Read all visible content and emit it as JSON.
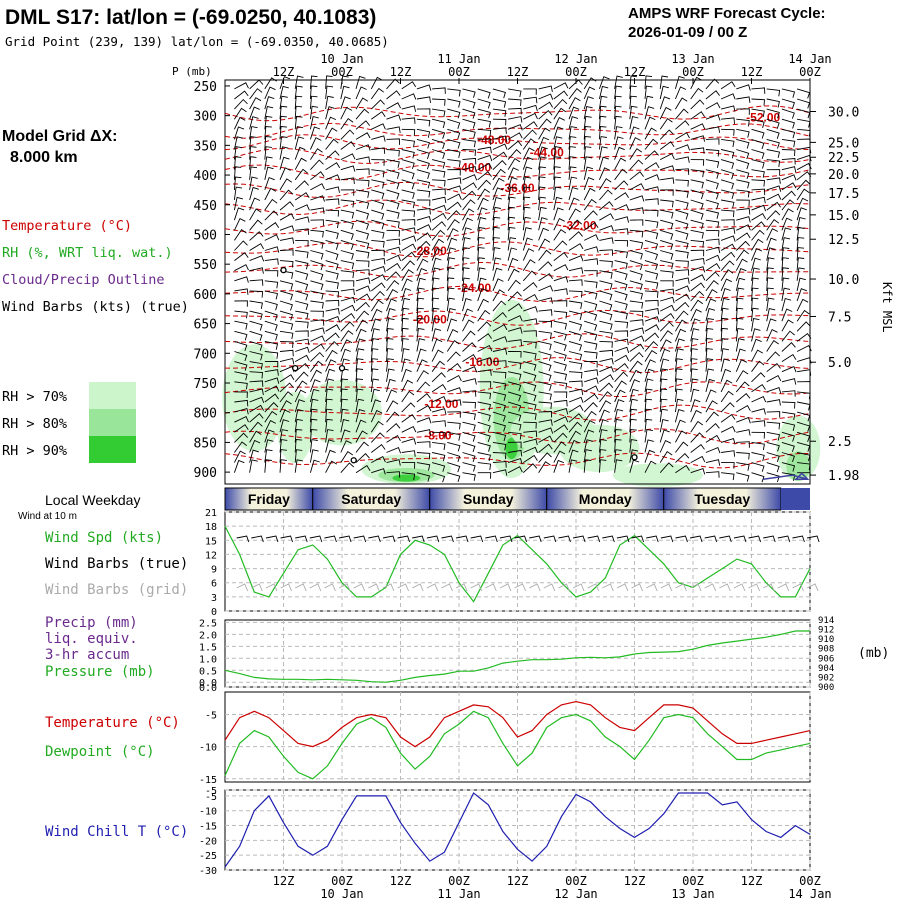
{
  "header": {
    "title": "DML S17:  lat/lon = (-69.0250, 40.1083)",
    "subtitle": "Grid Point (239, 139) lat/lon = (-69.0350, 40.0685)",
    "cycle_label": "AMPS WRF Forecast Cycle:",
    "cycle_value": "2026-01-09 / 00  Z",
    "grid_label": "Model Grid ΔX:",
    "grid_value": "8.000 km",
    "pressure_unit": "P (mb)",
    "height_unit": "Kft MSL"
  },
  "legend": {
    "temperature": "Temperature (°C)",
    "rh": "RH (%, WRT liq. wat.)",
    "cloud": "Cloud/Precip Outline",
    "wind_barbs": "Wind Barbs (kts) (true)",
    "rh70": "RH > 70%",
    "rh80": "RH > 80%",
    "rh90": "RH > 90%"
  },
  "colors": {
    "temperature": "#cc0000",
    "rh70": "#ccf5cc",
    "rh80": "#99e599",
    "rh90": "#33cc33",
    "wind_speed": "#22bb22",
    "dewpoint": "#22bb22",
    "wind_chill": "#1f1fb0",
    "pressure": "#22bb22",
    "precip": "#6a2a8c",
    "grid_barbs": "#aaaaaa",
    "weekday_band": "#3d4aa8"
  },
  "axis": {
    "time_labels_top": [
      "12Z",
      "00Z",
      "12Z",
      "00Z",
      "12Z",
      "00Z",
      "12Z",
      "00Z",
      "12Z",
      "00Z"
    ],
    "date_labels": [
      "10 Jan",
      "11 Jan",
      "12 Jan",
      "13 Jan",
      "14 Jan"
    ],
    "time_labels_bottom": [
      "12Z",
      "00Z",
      "12Z",
      "00Z",
      "12Z",
      "00Z",
      "12Z",
      "00Z",
      "12Z",
      "00Z"
    ],
    "pressure_ticks": [
      250,
      300,
      350,
      400,
      450,
      500,
      550,
      600,
      650,
      700,
      750,
      800,
      850,
      900
    ],
    "height_ticks": [
      "30.0",
      "25.0",
      "22.5",
      "20.0",
      "17.5",
      "15.0",
      "12.5",
      "10.0",
      "7.5",
      "5.0",
      "2.5",
      "1.98"
    ]
  },
  "weekday": {
    "label": "Local Weekday",
    "days": [
      "Friday",
      "Saturday",
      "Sunday",
      "Monday",
      "Tuesday"
    ]
  },
  "panels": {
    "wind": {
      "note": "Wind at 10 m",
      "speed_label": "Wind Spd (kts)",
      "barbs_true_label": "Wind Barbs (true)",
      "barbs_grid_label": "Wind Barbs (grid)",
      "ticks": [
        "21",
        "18",
        "15",
        "12",
        "9",
        "6",
        "3",
        "0"
      ]
    },
    "precip": {
      "precip_label": "Precip (mm)",
      "liq_label": "liq. equiv.",
      "accum_label": "3-hr accum",
      "pressure_label": "Pressure (mb)",
      "left_ticks": [
        "2.5",
        "2.0",
        "1.5",
        "1.0",
        "0.5",
        "0.0",
        "0.0"
      ],
      "right_ticks": [
        "914",
        "912",
        "910",
        "908",
        "906",
        "904",
        "902",
        "900"
      ],
      "right_unit": "(mb)"
    },
    "temp": {
      "temp_label": "Temperature (°C)",
      "dew_label": "Dewpoint (°C)",
      "ticks": [
        "-5",
        "-10",
        "-15"
      ]
    },
    "chill": {
      "label": "Wind Chill T (°C)",
      "ticks": [
        "-5",
        "-10",
        "-15",
        "-20",
        "-25",
        "-30",
        "-5"
      ]
    }
  },
  "chart_data": [
    {
      "type": "contour",
      "title": "DML S17:  lat/lon = (-69.0250, 40.1083)",
      "xlabel": "",
      "ylabel": "P (mb)",
      "ylim": [
        920,
        240
      ],
      "temperature_contour_labels": [
        {
          "label": "-52.00",
          "p": 303,
          "day": 4.6
        },
        {
          "label": "-48.00",
          "p": 341,
          "day": 2.3
        },
        {
          "label": "-44.00",
          "p": 362,
          "day": 2.75
        },
        {
          "label": "-40.00",
          "p": 387,
          "day": 2.13
        },
        {
          "label": "-36.00",
          "p": 422,
          "day": 2.5
        },
        {
          "label": "-32.00",
          "p": 485,
          "day": 3.03
        },
        {
          "label": "-28.00",
          "p": 528,
          "day": 1.75
        },
        {
          "label": "-24.00",
          "p": 590,
          "day": 2.13
        },
        {
          "label": "-20.00",
          "p": 643,
          "day": 1.75
        },
        {
          "label": "-16.00",
          "p": 715,
          "day": 2.2
        },
        {
          "label": "-12.00",
          "p": 785,
          "day": 1.85
        },
        {
          "label": "-8.00",
          "p": 838,
          "day": 1.82
        }
      ]
    },
    {
      "type": "line",
      "title": "Wind Spd (kts)",
      "ylim": [
        0,
        21
      ],
      "x": [
        0.0,
        0.125,
        0.25,
        0.375,
        0.5,
        0.625,
        0.75,
        0.875,
        1.0,
        1.125,
        1.25,
        1.375,
        1.5,
        1.625,
        1.75,
        1.875,
        2.0,
        2.125,
        2.25,
        2.375,
        2.5,
        2.625,
        2.75,
        2.875,
        3.0,
        3.125,
        3.25,
        3.375,
        3.5,
        3.625,
        3.75,
        3.875,
        4.0,
        4.125,
        4.25,
        4.375,
        4.5,
        4.625,
        4.75,
        4.875,
        5.0
      ],
      "series": [
        {
          "name": "Wind Spd (kts)",
          "values": [
            18,
            12,
            4,
            3,
            8,
            13,
            14,
            11,
            6,
            3,
            3,
            5,
            12,
            15,
            14,
            12,
            6,
            2,
            8,
            14,
            16,
            13,
            10,
            6,
            3,
            4,
            7,
            14,
            16,
            13,
            10,
            6,
            5,
            7,
            9,
            11,
            10,
            6,
            3,
            3,
            9
          ]
        }
      ]
    },
    {
      "type": "line",
      "title": "Pressure (mb)",
      "ylim": [
        900,
        914
      ],
      "x": [
        0.0,
        0.125,
        0.25,
        0.375,
        0.5,
        0.625,
        0.75,
        0.875,
        1.0,
        1.125,
        1.25,
        1.375,
        1.5,
        1.625,
        1.75,
        1.875,
        2.0,
        2.125,
        2.25,
        2.375,
        2.5,
        2.625,
        2.75,
        2.875,
        3.0,
        3.125,
        3.25,
        3.375,
        3.5,
        3.625,
        3.75,
        3.875,
        4.0,
        4.125,
        4.25,
        4.375,
        4.5,
        4.625,
        4.75,
        4.875,
        5.0
      ],
      "series": [
        {
          "name": "Pressure (mb)",
          "values": [
            903.5,
            902.8,
            902.0,
            901.7,
            901.6,
            901.6,
            901.5,
            901.6,
            901.5,
            901.4,
            901.1,
            901.0,
            901.4,
            902.0,
            902.4,
            902.7,
            903.3,
            903.3,
            904.0,
            905.0,
            905.4,
            905.7,
            905.7,
            905.8,
            906.1,
            906.2,
            906.1,
            906.3,
            906.9,
            907.2,
            907.3,
            907.4,
            907.9,
            908.7,
            909.2,
            909.6,
            910.0,
            910.4,
            911.0,
            911.7,
            911.7
          ]
        },
        {
          "name": "Precip (mm)",
          "values": [
            0,
            0,
            0,
            0,
            0,
            0,
            0,
            0,
            0,
            0,
            0,
            0,
            0,
            0,
            0,
            0,
            0,
            0,
            0,
            0,
            0,
            0,
            0,
            0,
            0,
            0,
            0,
            0,
            0,
            0,
            0,
            0,
            0,
            0,
            0,
            0,
            0,
            0,
            0,
            0,
            0
          ]
        }
      ]
    },
    {
      "type": "line",
      "title": "Temperature / Dewpoint (°C)",
      "ylim": [
        -15,
        -2
      ],
      "x": [
        0.0,
        0.125,
        0.25,
        0.375,
        0.5,
        0.625,
        0.75,
        0.875,
        1.0,
        1.125,
        1.25,
        1.375,
        1.5,
        1.625,
        1.75,
        1.875,
        2.0,
        2.125,
        2.25,
        2.375,
        2.5,
        2.625,
        2.75,
        2.875,
        3.0,
        3.125,
        3.25,
        3.375,
        3.5,
        3.625,
        3.75,
        3.875,
        4.0,
        4.125,
        4.25,
        4.375,
        4.5,
        4.625,
        4.75,
        4.875,
        5.0
      ],
      "series": [
        {
          "name": "Temperature (°C)",
          "values": [
            -9,
            -5.5,
            -4.5,
            -5.5,
            -7.5,
            -9.5,
            -10,
            -9,
            -7,
            -5.5,
            -5,
            -5.5,
            -8.5,
            -10,
            -8.5,
            -5.5,
            -4.5,
            -3.5,
            -3.8,
            -5.5,
            -8.5,
            -7.5,
            -5,
            -3.5,
            -3,
            -3.5,
            -5.5,
            -7,
            -7.5,
            -5.5,
            -3.5,
            -3.5,
            -4,
            -6,
            -8,
            -9.5,
            -9.5,
            -9,
            -8.5,
            -8,
            -7.5
          ]
        },
        {
          "name": "Dewpoint (°C)",
          "values": [
            -14.5,
            -9.5,
            -7.5,
            -8.5,
            -11.5,
            -14,
            -15,
            -13,
            -9.5,
            -6.5,
            -5.5,
            -7,
            -11,
            -13.5,
            -11.5,
            -8,
            -6.5,
            -4.5,
            -5.5,
            -9.5,
            -13,
            -11,
            -7,
            -5.5,
            -5,
            -6,
            -8.5,
            -10,
            -12,
            -9,
            -5.5,
            -5,
            -5.5,
            -8,
            -10,
            -12,
            -12,
            -11,
            -10.5,
            -10,
            -9.5
          ]
        }
      ]
    },
    {
      "type": "line",
      "title": "Wind Chill T (°C)",
      "ylim": [
        -30,
        -3
      ],
      "x": [
        0.0,
        0.125,
        0.25,
        0.375,
        0.5,
        0.625,
        0.75,
        0.875,
        1.0,
        1.125,
        1.25,
        1.375,
        1.5,
        1.625,
        1.75,
        1.875,
        2.0,
        2.125,
        2.25,
        2.375,
        2.5,
        2.625,
        2.75,
        2.875,
        3.0,
        3.125,
        3.25,
        3.375,
        3.5,
        3.625,
        3.75,
        3.875,
        4.0,
        4.125,
        4.25,
        4.375,
        4.5,
        4.625,
        4.75,
        4.875,
        5.0
      ],
      "series": [
        {
          "name": "Wind Chill T (°C)",
          "values": [
            -29,
            -22,
            -10,
            -5,
            -14,
            -22,
            -25,
            -22,
            -13,
            -5,
            -5,
            -5,
            -14,
            -21,
            -27,
            -24,
            -14,
            -4,
            -8,
            -17,
            -23,
            -27,
            -22,
            -12,
            -4.5,
            -7,
            -12,
            -16,
            -19,
            -16,
            -11,
            -4,
            -4,
            -4,
            -8,
            -7,
            -13,
            -17,
            -19,
            -15,
            -18
          ]
        }
      ]
    }
  ]
}
